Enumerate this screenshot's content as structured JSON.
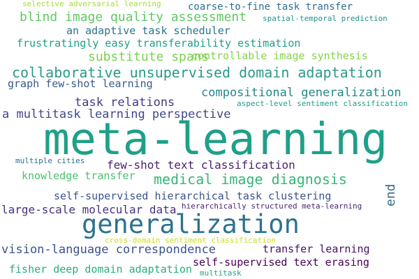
{
  "words": [
    {
      "text": "selective adversarial learning",
      "color": "#a8db34"
    },
    {
      "text": "coarse-to-fine task transfer",
      "color": "#2e6f8e"
    },
    {
      "text": "blind image quality assessment",
      "color": "#5ec962"
    },
    {
      "text": "spatial-temporal prediction",
      "color": "#21918c"
    },
    {
      "text": "an adaptive task scheduler",
      "color": "#2c728e"
    },
    {
      "text": "frustratingly easy transferability estimation",
      "color": "#1f9e89"
    },
    {
      "text": "substitute spans",
      "color": "#7ad151"
    },
    {
      "text": "controllable image synthesis",
      "color": "#84d44b"
    },
    {
      "text": "collaborative unsupervised domain adaptation",
      "color": "#2a9a89"
    },
    {
      "text": "graph few-shot learning",
      "color": "#38598c"
    },
    {
      "text": "compositional generalization",
      "color": "#24878e"
    },
    {
      "text": "task relations",
      "color": "#443a83"
    },
    {
      "text": "aspect-level sentiment classification",
      "color": "#1f9e89"
    },
    {
      "text": "a multitask learning perspective",
      "color": "#3f4788"
    },
    {
      "text": "meta-learning",
      "color": "#1fa088"
    },
    {
      "text": "multiple cities",
      "color": "#2c728e"
    },
    {
      "text": "few-shot text classification",
      "color": "#481f70"
    },
    {
      "text": "knowledge transfer",
      "color": "#4ac16d"
    },
    {
      "text": "medical image diagnosis",
      "color": "#35b779"
    },
    {
      "text": "end",
      "color": "#31688e"
    },
    {
      "text": "self-supervised hierarchical task clustering",
      "color": "#3b528b"
    },
    {
      "text": "large-scale molecular data",
      "color": "#46327e"
    },
    {
      "text": "hierarchically structured meta-learning",
      "color": "#482576"
    },
    {
      "text": "generalization",
      "color": "#2c728e"
    },
    {
      "text": "cross-domain sentiment classification",
      "color": "#c8e020"
    },
    {
      "text": "vision-language correspondence",
      "color": "#3b528b"
    },
    {
      "text": "transfer learning",
      "color": "#471063"
    },
    {
      "text": "self-supervised text erasing",
      "color": "#440154"
    },
    {
      "text": "fisher deep domain adaptation",
      "color": "#27ad81"
    },
    {
      "text": "multitask",
      "color": "#20a386"
    }
  ]
}
